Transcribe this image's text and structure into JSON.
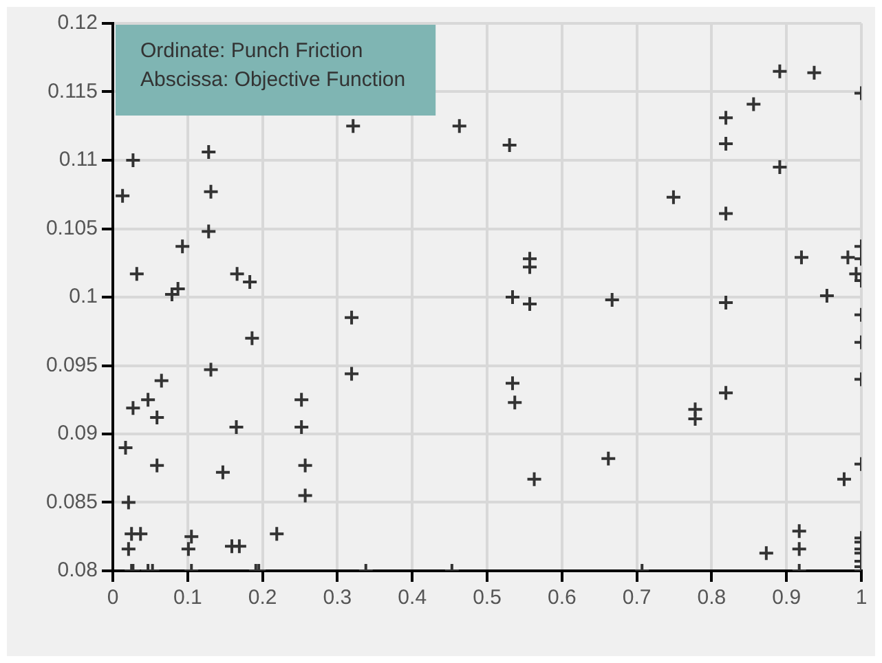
{
  "chart_data": {
    "type": "scatter",
    "marker": "cross",
    "grid": true,
    "legend": false,
    "annotations": [
      "Ordinate: Punch Friction",
      "Abscissa: Objective Function"
    ],
    "xlim": [
      0,
      1
    ],
    "xticks": [
      0,
      0.1,
      0.2,
      0.3,
      0.4,
      0.5,
      0.6,
      0.7,
      0.8,
      0.9,
      1
    ],
    "ylim": [
      0.08,
      0.12
    ],
    "yticks": [
      0.08,
      0.085,
      0.09,
      0.095,
      0.1,
      0.105,
      0.11,
      0.115,
      0.12
    ],
    "series": [
      {
        "color": "#333333",
        "x": [
          0.321,
          0.463,
          0.53,
          0.891,
          0.937,
          1,
          0.856,
          0.819,
          0.819,
          0.891,
          0.749,
          0.819,
          0.92,
          0.982,
          1,
          1,
          0.993,
          1,
          0.557,
          0.557,
          0.534,
          0.557,
          0.667,
          0.819,
          0.954,
          0.027,
          0.013,
          0.128,
          0.131,
          0.128,
          0.093,
          0.032,
          0.166,
          0.183,
          0.079,
          0.087,
          0.319,
          0.186,
          0.131,
          0.319,
          0.065,
          0.047,
          0.027,
          0.059,
          0.252,
          0.165,
          0.252,
          0.017,
          0.059,
          0.257,
          0.147,
          0.257,
          0.021,
          0.025,
          0.037,
          0.021,
          0.105,
          0.101,
          0.159,
          0.169,
          0.219,
          0.025,
          0.027,
          0.047,
          0.053,
          0.105,
          0.191,
          0.195,
          0.338,
          0.453,
          0.534,
          0.537,
          0.563,
          0.662,
          0.778,
          0.778,
          0.819,
          1,
          1,
          1,
          1,
          0.977,
          0.917,
          0.917,
          0.873,
          1,
          1,
          1,
          1,
          1,
          1,
          0.707,
          0.917,
          1
        ],
        "values": [
          0.1125,
          0.1125,
          0.1111,
          0.1165,
          0.1164,
          0.1149,
          0.1141,
          0.1131,
          0.1112,
          0.1095,
          0.1073,
          0.1061,
          0.1029,
          0.1029,
          0.1037,
          0.1028,
          0.1017,
          0.1012,
          0.1028,
          0.1022,
          0.1,
          0.0995,
          0.0998,
          0.0996,
          0.1001,
          0.11,
          0.1074,
          0.1106,
          0.1077,
          0.1048,
          0.1037,
          0.1017,
          0.1017,
          0.1011,
          0.1002,
          0.1006,
          0.0985,
          0.097,
          0.0947,
          0.0944,
          0.0939,
          0.0925,
          0.0919,
          0.0912,
          0.0925,
          0.0905,
          0.0905,
          0.089,
          0.0877,
          0.0877,
          0.0872,
          0.0855,
          0.085,
          0.0827,
          0.0827,
          0.0816,
          0.0825,
          0.0816,
          0.0818,
          0.0818,
          0.0827,
          0.08,
          0.08,
          0.08,
          0.08,
          0.08,
          0.08,
          0.08,
          0.08,
          0.08,
          0.0937,
          0.0923,
          0.0867,
          0.0882,
          0.0918,
          0.0911,
          0.093,
          0.094,
          0.0967,
          0.0987,
          0.0878,
          0.0867,
          0.0829,
          0.0816,
          0.0813,
          0.0824,
          0.0821,
          0.0816,
          0.0813,
          0.0807,
          0.0803,
          0.08,
          0.08,
          0.08
        ]
      }
    ]
  }
}
